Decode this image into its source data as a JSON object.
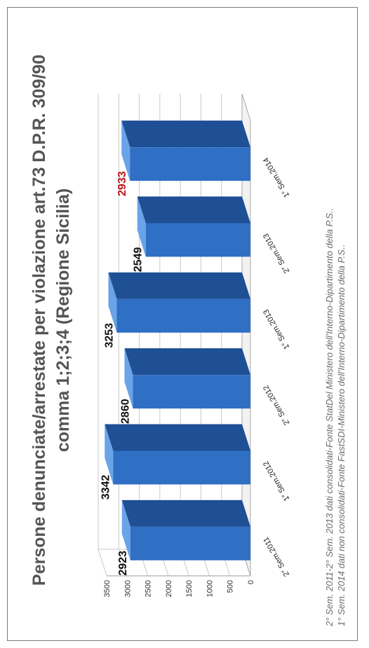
{
  "chart_data": {
    "type": "bar",
    "orientation": "rotated-90",
    "style": "3d",
    "title_lines": [
      "Persone denunciate/arrestate per violazione art.73 D.P.R. 309/90",
      "comma 1;2;3;4 (Regione Sicilia)"
    ],
    "categories": [
      "2° Sem.2011",
      "1° Sem.2012",
      "2° Sem.2012",
      "1° Sem.2013",
      "2° Sem.2013",
      "1° Sem.2014"
    ],
    "values": [
      2923,
      3342,
      2860,
      3253,
      2549,
      2933
    ],
    "data_labels": [
      "2923",
      "3342",
      "2860",
      "3253",
      "2549",
      "2933"
    ],
    "highlight_index": 5,
    "ylim": [
      0,
      3500
    ],
    "y_ticks": [
      "0",
      "500",
      "1000",
      "1500",
      "2000",
      "2500",
      "3000",
      "3500"
    ],
    "grid": true,
    "legend": "none",
    "notes": [
      "2° Sem. 2011-2° Sem. 2013 dati consolidati-Fonte StatDel Ministero dell'Interno-Dipartimento della P.S..",
      "1° Sem. 2014 dati non consolidati-Fonte FastSDI-Ministero dell'Interno-Dipartimento della P.S.."
    ]
  },
  "colors": {
    "bar_front": "#2f6fc4",
    "bar_top": "#6aa3e8",
    "bar_side": "#1f4f94",
    "label_normal": "#111111",
    "label_highlight": "#c0141c",
    "grid": "#c8c8c8",
    "title": "#555555"
  }
}
